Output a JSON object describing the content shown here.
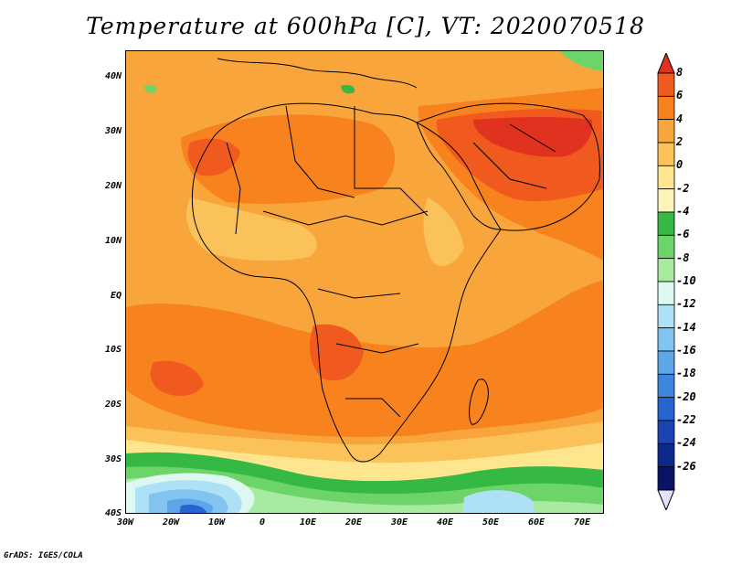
{
  "title": "Temperature at 600hPa [C], VT: 2020070518",
  "credit": "GrADS: IGES/COLA",
  "y_axis_labels": [
    "40N",
    "30N",
    "20N",
    "10N",
    "EQ",
    "10S",
    "20S",
    "30S",
    "40S"
  ],
  "x_axis_labels": [
    "30W",
    "20W",
    "10W",
    "0",
    "10E",
    "20E",
    "30E",
    "40E",
    "50E",
    "60E",
    "70E"
  ],
  "colorbar": {
    "labels": [
      "8",
      "6",
      "4",
      "2",
      "0",
      "-2",
      "-4",
      "-6",
      "-8",
      "-10",
      "-12",
      "-14",
      "-16",
      "-18",
      "-20",
      "-22",
      "-24",
      "-26"
    ],
    "colors": [
      "#e0321e",
      "#f05a1e",
      "#f7821e",
      "#f8a53c",
      "#fbc25a",
      "#fde68e",
      "#fff4b8",
      "#35b844",
      "#6dd46a",
      "#a8eaa0",
      "#dcf8f0",
      "#aee0f6",
      "#82c4f0",
      "#5ea6ea",
      "#3c86e0",
      "#2664cf",
      "#1a44b4",
      "#0c2a8c",
      "#0a1464",
      "#e6e0ff"
    ]
  },
  "map": {
    "region": "Africa, Arabian Peninsula, Atlantic and Indian Oceans",
    "lon_range": [
      -30,
      75
    ],
    "lat_range": [
      -40,
      45
    ],
    "colors": {
      "base": "#f8a53c",
      "warm": "#f7821e",
      "hot": "#f05a1e",
      "hottest": "#e0321e",
      "mild": "#fbc25a",
      "cool": "#fde68e",
      "cold_green": "#35b844",
      "cold_lightgreen": "#6dd46a",
      "cold_palegreen": "#a8eaa0",
      "cold_cyan": "#dcf8f0",
      "cold_lightblue": "#aee0f6",
      "cold_blue": "#82c4f0",
      "cold_midblue": "#5ea6ea",
      "cold_darkblue": "#2664cf"
    }
  }
}
